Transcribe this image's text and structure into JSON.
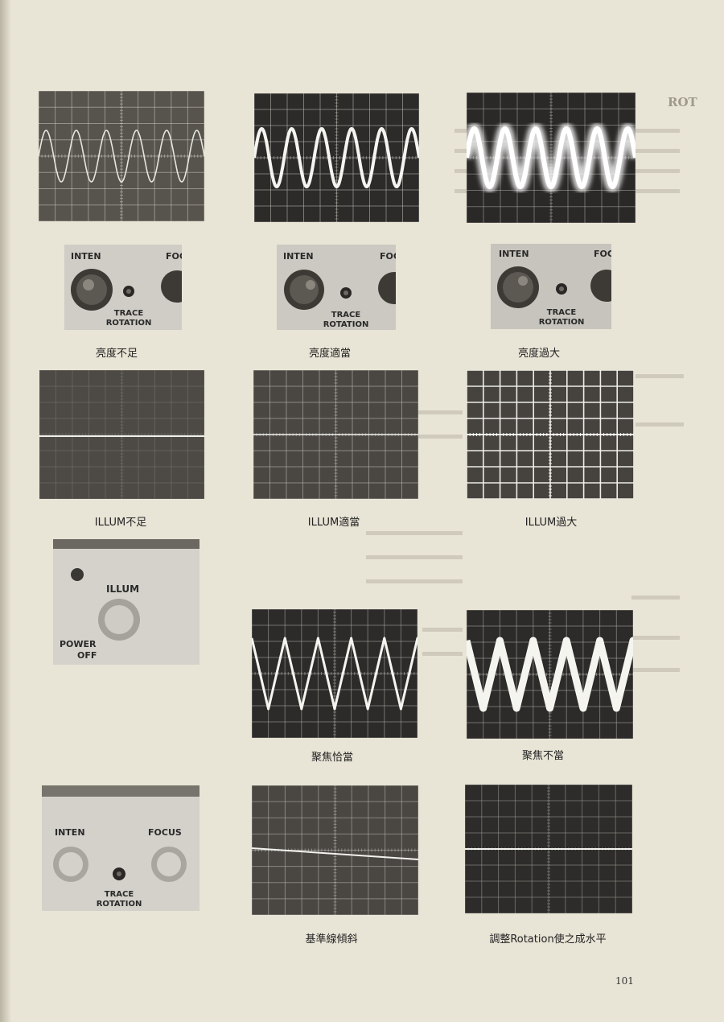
{
  "page": {
    "page_number": "101",
    "background_page_title": "ROT"
  },
  "rows": {
    "brightness": {
      "captions": [
        "亮度不足",
        "亮度適當",
        "亮度過大"
      ],
      "panel_labels": {
        "inten": "INTEN",
        "focus_partial": "FOC",
        "trace": "TRACE",
        "rotation": "ROTATION"
      }
    },
    "illumination": {
      "captions": [
        "ILLUM不足",
        "ILLUM適當",
        "ILLUM過大"
      ]
    },
    "focus": {
      "captions": [
        "聚焦恰當",
        "聚焦不當"
      ],
      "panel_labels": {
        "illum": "ILLUM",
        "power": "POWER",
        "off": "OFF"
      }
    },
    "rotation": {
      "captions": [
        "基準線傾斜",
        "調整Rotation使之成水平"
      ],
      "panel_labels": {
        "inten": "INTEN",
        "focus": "FOCUS",
        "trace": "TRACE",
        "rotation": "ROTATION"
      }
    }
  },
  "colors": {
    "paper": "#e8e4d6",
    "screen_dim": "#4a4743",
    "screen_dark": "#2b2a28",
    "trace": "#f2f2ee",
    "grid": "#d8d6cf"
  }
}
